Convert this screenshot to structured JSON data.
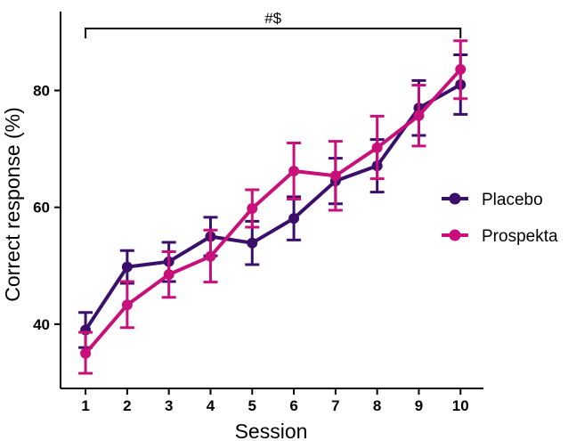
{
  "chart_data": {
    "type": "line",
    "title": "",
    "xlabel": "Session",
    "ylabel": "Correct response (%)",
    "x": [
      1,
      2,
      3,
      4,
      5,
      6,
      7,
      8,
      9,
      10
    ],
    "x_tick_labels": [
      "1",
      "2",
      "3",
      "4",
      "5",
      "6",
      "7",
      "8",
      "9",
      "10"
    ],
    "y_ticks": [
      40,
      60,
      80
    ],
    "y_tick_labels": [
      "40",
      "60",
      "80"
    ],
    "ylim": [
      29,
      93.5
    ],
    "xlim": [
      0.4,
      10.55
    ],
    "grid": false,
    "legend_position": "right",
    "series": [
      {
        "name": "Placebo",
        "color": "#3a0f6b",
        "values": [
          39.0,
          49.8,
          50.7,
          55.0,
          53.9,
          58.1,
          64.5,
          67.1,
          77.0,
          81.0
        ],
        "err_low": [
          36.0,
          47.0,
          47.3,
          51.7,
          50.2,
          54.4,
          60.6,
          62.6,
          72.3,
          75.9
        ],
        "err_high": [
          42.0,
          52.6,
          54.0,
          58.3,
          57.6,
          61.8,
          68.4,
          71.6,
          81.7,
          86.1
        ]
      },
      {
        "name": "Prospekta",
        "color": "#c8107a",
        "values": [
          35.0,
          43.3,
          48.5,
          51.6,
          59.8,
          66.2,
          65.4,
          70.2,
          75.7,
          83.6
        ],
        "err_low": [
          31.6,
          39.4,
          44.6,
          47.2,
          56.6,
          61.4,
          59.5,
          64.9,
          70.5,
          78.6
        ],
        "err_high": [
          38.6,
          47.3,
          52.4,
          56.1,
          63.0,
          71.0,
          71.3,
          75.6,
          80.9,
          88.5
        ]
      }
    ],
    "annotation": {
      "text": "#$",
      "from_x": 1,
      "to_x": 10
    }
  }
}
